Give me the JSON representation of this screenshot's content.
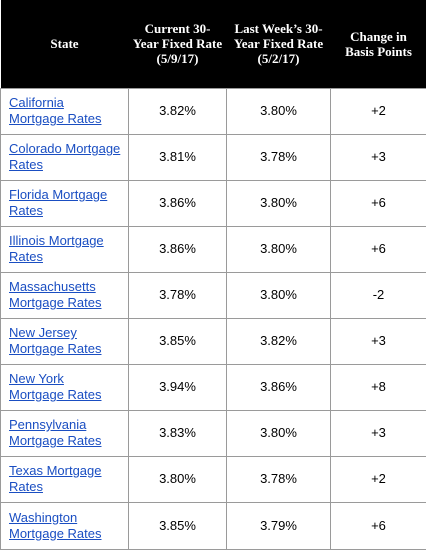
{
  "headers": {
    "state": "State",
    "current": "Current 30-Year Fixed Rate (5/9/17)",
    "last_week": "Last Week’s 30-Year Fixed Rate (5/2/17)",
    "change": "Change in Basis Points"
  },
  "rows": [
    {
      "state": "California Mortgage Rates",
      "current": "3.82%",
      "last_week": "3.80%",
      "change": "+2"
    },
    {
      "state": "Colorado Mortgage Rates",
      "current": "3.81%",
      "last_week": "3.78%",
      "change": "+3"
    },
    {
      "state": "Florida Mortgage Rates",
      "current": "3.86%",
      "last_week": "3.80%",
      "change": "+6"
    },
    {
      "state": "Illinois Mortgage Rates",
      "current": "3.86%",
      "last_week": "3.80%",
      "change": "+6"
    },
    {
      "state": "Massachusetts Mortgage Rates",
      "current": "3.78%",
      "last_week": "3.80%",
      "change": "-2"
    },
    {
      "state": "New Jersey Mortgage Rates",
      "current": "3.85%",
      "last_week": "3.82%",
      "change": "+3"
    },
    {
      "state": "New York Mortgage Rates",
      "current": "3.94%",
      "last_week": "3.86%",
      "change": "+8"
    },
    {
      "state": "Pennsylvania Mortgage Rates",
      "current": "3.83%",
      "last_week": "3.80%",
      "change": "+3"
    },
    {
      "state": "Texas Mortgage Rates",
      "current": "3.80%",
      "last_week": "3.78%",
      "change": "+2"
    },
    {
      "state": "Washington Mortgage Rates",
      "current": "3.85%",
      "last_week": "3.79%",
      "change": "+6"
    }
  ],
  "colors": {
    "header_background": "#000000",
    "header_text": "#ffffff",
    "link": "#1a4ec2",
    "cell_border": "#9a9a9a"
  }
}
